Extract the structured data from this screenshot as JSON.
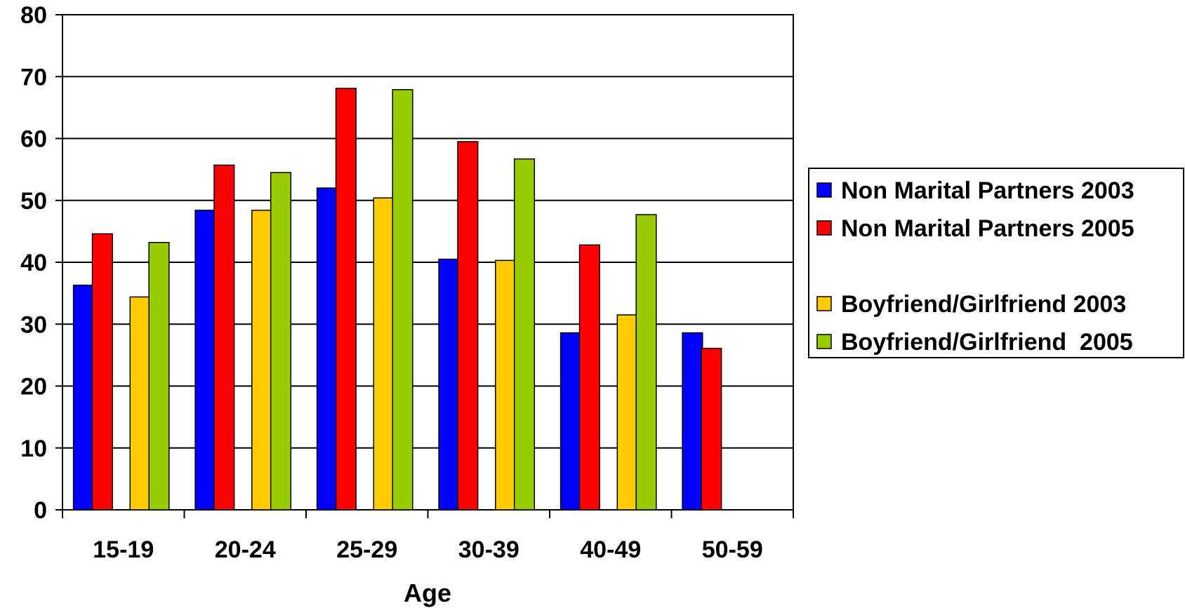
{
  "chart_data": {
    "type": "bar",
    "categories": [
      "15-19",
      "20-24",
      "25-29",
      "30-39",
      "40-49",
      "50-59"
    ],
    "series": [
      {
        "name": "Non Marital Partners 2003",
        "color": "#0000ff",
        "values": [
          36.3,
          48.4,
          52.0,
          40.5,
          28.6,
          28.6
        ]
      },
      {
        "name": "Non Marital Partners 2005",
        "color": "#ff0000",
        "values": [
          44.6,
          55.7,
          68.1,
          59.5,
          42.8,
          26.1
        ]
      },
      {
        "name": "Boyfriend/Girlfriend 2003",
        "color": "#ffcc00",
        "values": [
          34.4,
          48.4,
          50.4,
          40.3,
          31.5,
          null
        ]
      },
      {
        "name": "Boyfriend/Girlfriend  2005",
        "color": "#99cc00",
        "values": [
          43.2,
          54.5,
          67.9,
          56.7,
          47.7,
          null
        ]
      }
    ],
    "xlabel": "Age",
    "ylabel": "",
    "ylim": [
      0,
      80
    ],
    "yticks": [
      0,
      10,
      20,
      30,
      40,
      50,
      60,
      70,
      80
    ],
    "grid": true,
    "legend": "right"
  }
}
